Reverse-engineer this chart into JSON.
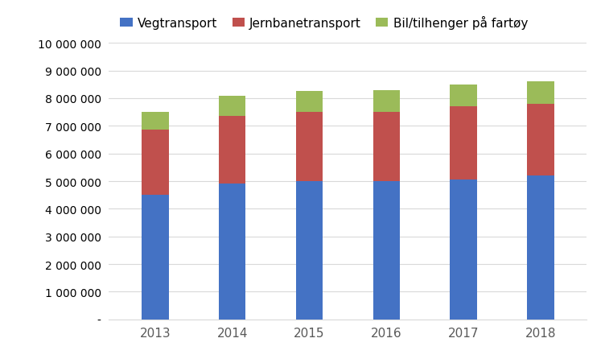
{
  "years": [
    "2013",
    "2014",
    "2015",
    "2016",
    "2017",
    "2018"
  ],
  "vegtransport": [
    4500000,
    4900000,
    5000000,
    5000000,
    5050000,
    5200000
  ],
  "jernbanetransport": [
    2350000,
    2450000,
    2500000,
    2500000,
    2650000,
    2600000
  ],
  "bil_tilhenger": [
    650000,
    750000,
    750000,
    800000,
    800000,
    800000
  ],
  "colors": {
    "vegtransport": "#4472C4",
    "jernbanetransport": "#C0504D",
    "bil_tilhenger": "#9BBB59"
  },
  "legend_labels": [
    "Vegtransport",
    "Jernbanetransport",
    "Bil/tilhenger på fartøy"
  ],
  "ylim": [
    0,
    10000000
  ],
  "ytick_step": 1000000,
  "background_color": "#FFFFFF",
  "grid_color": "#D9D9D9"
}
